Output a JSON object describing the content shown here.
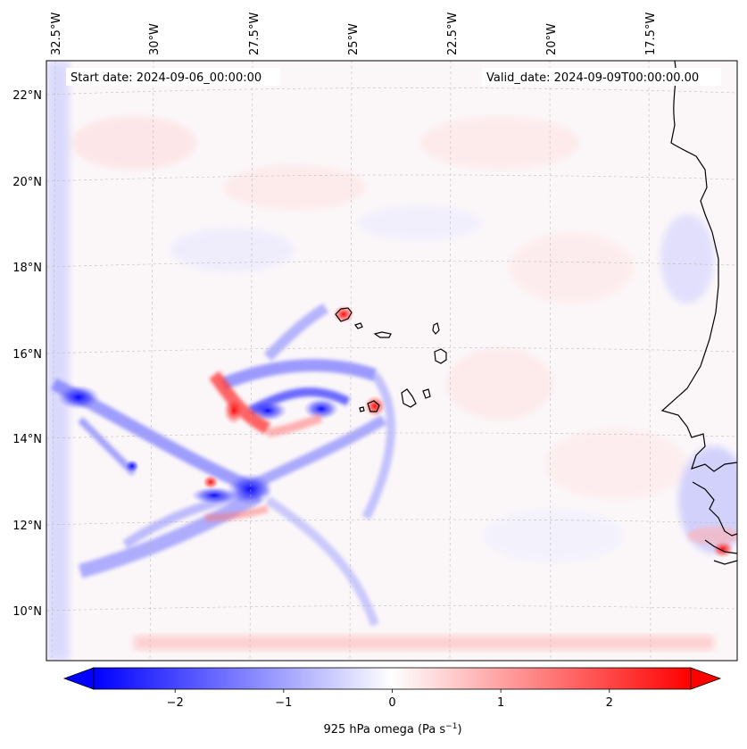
{
  "map": {
    "start_date": "Start date: 2024-09-06_00:00:00",
    "valid_date": "Valid_date: 2024-09-09T00:00:00.00",
    "lon_labels": [
      "32.5°W",
      "30°W",
      "27.5°W",
      "25°W",
      "22.5°W",
      "20°W",
      "17.5°W"
    ],
    "lat_labels": [
      "22°N",
      "20°N",
      "18°N",
      "16°N",
      "14°N",
      "12°N",
      "10°N"
    ],
    "colorbar": {
      "label_main": "925 hPa omega (Pa s",
      "label_exp": "−1",
      "label_close": ")",
      "ticks": [
        "−2",
        "−1",
        "0",
        "1",
        "2"
      ],
      "min": -2.75,
      "max": 2.75,
      "tick_values": [
        -2,
        -1,
        0,
        1,
        2
      ],
      "cmap": "bwr",
      "extend": "both"
    },
    "colors": {
      "negative": "#0000ff",
      "positive": "#ff0000",
      "zero": "#ffffff",
      "coast": "#000000",
      "grid": "#b0b0b0"
    }
  }
}
